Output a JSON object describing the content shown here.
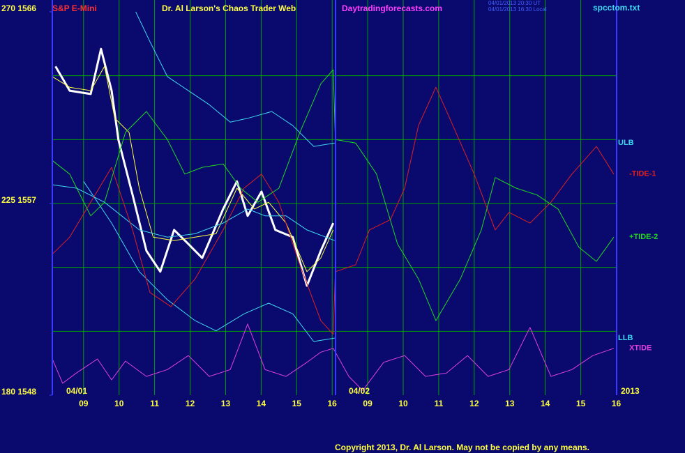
{
  "chart_data": {
    "type": "line",
    "title": "Dr. Al Larson's Chaos Trader Web",
    "instrument": "S&P E-Mini",
    "website": "Daytradingforecasts.com",
    "timestamps": [
      "04/01/2013 20:30 UT",
      "04/01/2013 16:30 Local"
    ],
    "file_name": "spcctom.txt",
    "day_labels": [
      "04/01",
      "04/02"
    ],
    "year_label": "2013",
    "copyright": "Copyright 2013, Dr. Al Larson. May not be copied by any means.",
    "xlim": [
      8.12,
      24.01
    ],
    "xticks": [
      {
        "value": 9,
        "label": "09"
      },
      10,
      11,
      12,
      13,
      14,
      15,
      16,
      {
        "value": 17,
        "label": "09"
      },
      {
        "value": 18,
        "label": "10"
      },
      {
        "value": 19,
        "label": "11"
      },
      {
        "value": 20,
        "label": "12"
      },
      {
        "value": 21,
        "label": "13"
      },
      {
        "value": 22,
        "label": "14"
      },
      {
        "value": 23,
        "label": "15"
      },
      {
        "value": 24,
        "label": "16"
      }
    ],
    "ylim": [
      180,
      270
    ],
    "yticks": [
      {
        "value": 270,
        "label": "270  1566"
      },
      {
        "value": 225,
        "label": "225  1557"
      },
      {
        "value": 180,
        "label": "180  1548"
      }
    ],
    "ygrid": [
      195,
      210,
      225,
      240,
      255
    ],
    "grid": true,
    "series": [
      {
        "color": "#ffffff",
        "width": 3,
        "x": [
          8.21,
          8.61,
          9.2,
          9.49,
          9.79,
          9.98,
          10.38,
          10.77,
          11.16,
          11.55,
          11.95,
          12.34,
          12.93,
          13.32,
          13.62,
          14.01,
          14.4,
          14.89,
          15.29,
          15.68,
          16.03
        ],
        "values": [
          257.2,
          251.5,
          250.7,
          261.3,
          251.5,
          240.0,
          227.0,
          213.9,
          209.0,
          218.8,
          215.5,
          212.2,
          223.7,
          230.2,
          222.1,
          227.8,
          218.8,
          217.1,
          205.7,
          213.9,
          220.4
        ]
      },
      {
        "color": "#ffff40",
        "width": 1,
        "x": [
          8.12,
          8.61,
          9.2,
          9.59,
          9.88,
          10.28,
          10.57,
          10.96,
          11.55,
          12.14,
          12.73,
          13.32,
          13.81,
          14.21,
          14.7,
          15.29,
          15.68,
          16.03
        ],
        "values": [
          254.8,
          252.3,
          251.5,
          257.2,
          245.0,
          241.7,
          228.6,
          217.1,
          216.3,
          217.1,
          217.9,
          228.6,
          223.7,
          225.3,
          220.4,
          209.0,
          212.2,
          218.8
        ]
      },
      {
        "name": "ULB",
        "color": "#40d8f0",
        "width": 1,
        "x": [
          10.47,
          10.87,
          11.36,
          11.95,
          12.54,
          13.13,
          13.62,
          14.3,
          14.89,
          15.48,
          16.07
        ],
        "values": [
          270,
          263.0,
          254.8,
          251.5,
          248.2,
          244.1,
          245.0,
          246.6,
          243.3,
          238.4,
          239.2
        ]
      },
      {
        "color": "#40d8f0",
        "width": 1,
        "x": [
          8.12,
          8.8,
          9.59,
          10.57,
          11.36,
          12.14,
          12.93,
          13.62,
          14.11,
          14.7,
          15.29,
          16.07
        ],
        "values": [
          229.4,
          228.6,
          225.3,
          218.8,
          217.1,
          217.9,
          220.4,
          223.7,
          222.1,
          222.1,
          218.8,
          216.3
        ]
      },
      {
        "name": "LLB",
        "color": "#40d8f0",
        "width": 1,
        "x": [
          9.0,
          9.79,
          10.57,
          11.36,
          12.14,
          12.73,
          13.52,
          14.21,
          14.89,
          15.48,
          16.07
        ],
        "values": [
          230.2,
          220.4,
          209.0,
          202.4,
          197.5,
          195.1,
          199.1,
          201.6,
          199.1,
          192.6,
          193.4
        ]
      },
      {
        "name": "-TIDE-1",
        "color": "#e02020",
        "width": 1,
        "x": [
          8.12,
          8.61,
          9.2,
          9.79,
          10.38,
          10.87,
          11.46,
          12.14,
          12.93,
          13.52,
          14.01,
          14.5,
          15.09,
          15.68,
          16.03,
          16.09,
          16.66,
          17.05,
          17.64,
          18.04,
          18.43,
          18.92,
          19.31,
          20.0,
          20.59,
          20.98,
          21.57,
          22.16,
          22.75,
          23.44,
          23.93
        ],
        "values": [
          213.1,
          217.1,
          225.3,
          233.5,
          218.8,
          204.1,
          200.8,
          207.3,
          218.8,
          228.6,
          231.9,
          225.3,
          210.6,
          197.5,
          194.3,
          209.0,
          210.6,
          218.8,
          221.2,
          228.6,
          243.3,
          252.3,
          245.0,
          231.9,
          218.8,
          222.9,
          220.4,
          225.3,
          231.9,
          238.4,
          231.9
        ]
      },
      {
        "name": "+TIDE-2",
        "color": "#20d820",
        "width": 1,
        "x": [
          8.12,
          8.61,
          9.2,
          9.59,
          10.18,
          10.77,
          11.36,
          11.85,
          12.34,
          12.93,
          13.42,
          13.91,
          14.5,
          15.09,
          15.68,
          16.03,
          16.09,
          16.66,
          17.25,
          17.84,
          18.43,
          18.92,
          19.61,
          20.2,
          20.59,
          21.18,
          21.77,
          22.36,
          22.95,
          23.44,
          23.93
        ],
        "values": [
          235.1,
          231.9,
          222.1,
          225.3,
          241.7,
          246.6,
          240.0,
          231.9,
          233.5,
          234.3,
          228.6,
          225.3,
          228.6,
          241.7,
          253.1,
          256.4,
          240.0,
          239.2,
          231.9,
          215.5,
          207.3,
          197.5,
          207.3,
          218.8,
          231.1,
          228.6,
          227.0,
          223.7,
          214.7,
          211.4,
          217.1
        ]
      },
      {
        "name": "XTIDE",
        "color": "#e040e0",
        "width": 1,
        "x": [
          8.12,
          8.41,
          8.8,
          9.39,
          9.79,
          10.18,
          10.77,
          11.36,
          11.95,
          12.54,
          13.13,
          13.62,
          14.11,
          14.7,
          15.29,
          15.68,
          16.03,
          16.47,
          16.86,
          17.45,
          18.04,
          18.63,
          19.22,
          19.81,
          20.39,
          20.98,
          21.57,
          22.16,
          22.75,
          23.34,
          23.93
        ],
        "values": [
          188.5,
          182.8,
          185.2,
          188.5,
          183.6,
          188.0,
          184.4,
          186.0,
          189.3,
          184.4,
          186.0,
          196.7,
          186.0,
          184.4,
          187.7,
          190.1,
          191.0,
          184.4,
          181.1,
          187.7,
          189.3,
          184.4,
          185.2,
          189.3,
          184.4,
          186.0,
          195.9,
          184.4,
          186.0,
          189.3,
          191.0
        ]
      }
    ]
  }
}
